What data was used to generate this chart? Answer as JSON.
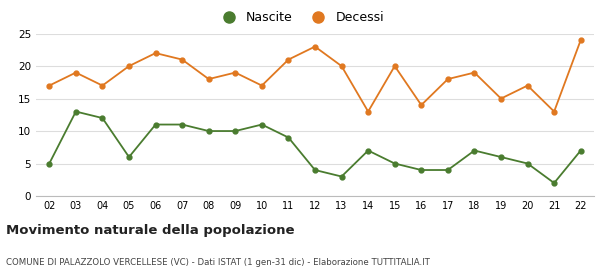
{
  "years": [
    "02",
    "03",
    "04",
    "05",
    "06",
    "07",
    "08",
    "09",
    "10",
    "11",
    "12",
    "13",
    "14",
    "15",
    "16",
    "17",
    "18",
    "19",
    "20",
    "21",
    "22"
  ],
  "nascite": [
    5,
    13,
    12,
    6,
    11,
    11,
    10,
    10,
    11,
    9,
    4,
    3,
    7,
    5,
    4,
    4,
    7,
    6,
    5,
    2,
    7
  ],
  "decessi": [
    17,
    19,
    17,
    20,
    22,
    21,
    18,
    19,
    17,
    21,
    23,
    20,
    13,
    20,
    14,
    18,
    19,
    15,
    17,
    13,
    24
  ],
  "nascite_color": "#4a7c2f",
  "decessi_color": "#e07820",
  "title": "Movimento naturale della popolazione",
  "subtitle": "COMUNE DI PALAZZOLO VERCELLESE (VC) - Dati ISTAT (1 gen-31 dic) - Elaborazione TUTTITALIA.IT",
  "legend_nascite": "Nascite",
  "legend_decessi": "Decessi",
  "ylim": [
    0,
    25
  ],
  "yticks": [
    0,
    5,
    10,
    15,
    20,
    25
  ],
  "background_color": "#ffffff",
  "grid_color": "#dddddd"
}
